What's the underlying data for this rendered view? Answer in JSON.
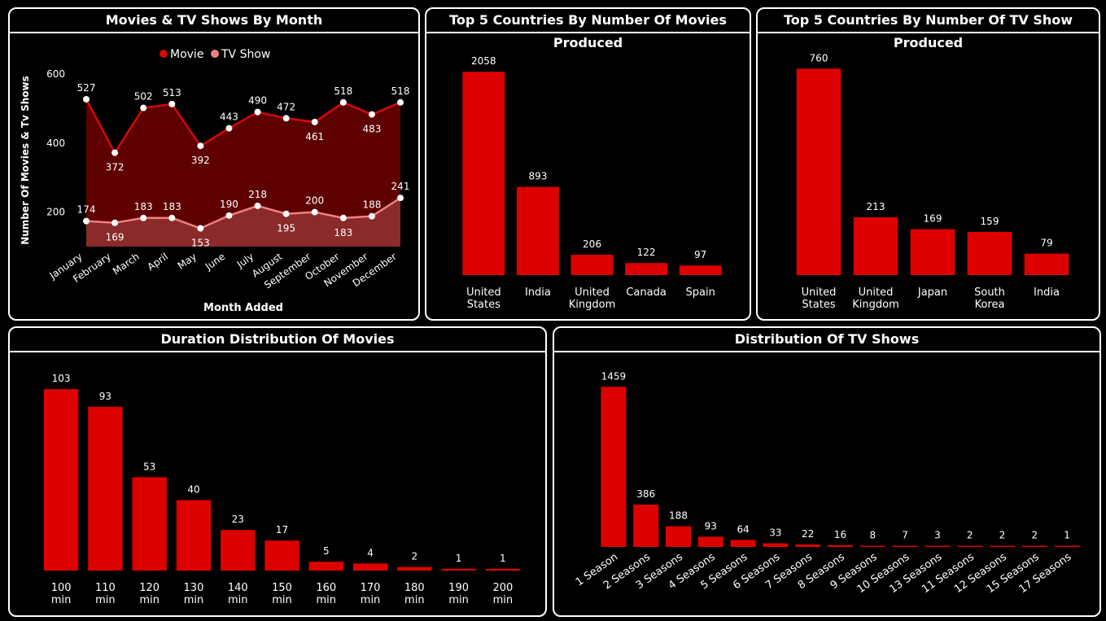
{
  "colors": {
    "movie": "#d10a0a",
    "tv": "#f08080",
    "bar": "#dd0000",
    "movie_area": "#5e0000",
    "tv_area": "#8a2a2a"
  },
  "chart_data": [
    {
      "type": "line",
      "title": "Movies & TV Shows By Month",
      "xlabel": "Month Added",
      "ylabel": "Number Of Movies & Tv Shows",
      "ylim": [
        100,
        600
      ],
      "yticks": [
        200,
        400,
        600
      ],
      "legend_position": "top-center",
      "grid": false,
      "categories": [
        "January",
        "February",
        "March",
        "April",
        "May",
        "June",
        "July",
        "August",
        "September",
        "October",
        "November",
        "December"
      ],
      "series": [
        {
          "name": "Movie",
          "values": [
            527,
            372,
            502,
            513,
            392,
            443,
            490,
            472,
            461,
            518,
            483,
            518
          ]
        },
        {
          "name": "TV Show",
          "values": [
            174,
            169,
            183,
            183,
            153,
            190,
            218,
            195,
            200,
            183,
            188,
            241
          ]
        }
      ]
    },
    {
      "type": "bar",
      "title": "Top 5 Countries By Number Of Movies Produced",
      "categories": [
        [
          "United",
          "States"
        ],
        [
          "India"
        ],
        [
          "United",
          "Kingdom"
        ],
        [
          "Canada"
        ],
        [
          "Spain"
        ]
      ],
      "values": [
        2058,
        893,
        206,
        122,
        97
      ],
      "ylim": [
        0,
        2200
      ]
    },
    {
      "type": "bar",
      "title": "Top 5 Countries By Number Of TV Show Produced",
      "categories": [
        [
          "United",
          "States"
        ],
        [
          "United",
          "Kingdom"
        ],
        [
          "Japan"
        ],
        [
          "South",
          "Korea"
        ],
        [
          "India"
        ]
      ],
      "values": [
        760,
        213,
        169,
        159,
        79
      ],
      "ylim": [
        0,
        800
      ]
    },
    {
      "type": "bar",
      "title": "Duration Distribution Of Movies",
      "categories": [
        [
          "100",
          "min"
        ],
        [
          "110",
          "min"
        ],
        [
          "120",
          "min"
        ],
        [
          "130",
          "min"
        ],
        [
          "140",
          "min"
        ],
        [
          "150",
          "min"
        ],
        [
          "160",
          "min"
        ],
        [
          "170",
          "min"
        ],
        [
          "180",
          "min"
        ],
        [
          "190",
          "min"
        ],
        [
          "200",
          "min"
        ]
      ],
      "values": [
        103,
        93,
        53,
        40,
        23,
        17,
        5,
        4,
        2,
        1,
        1
      ],
      "ylim": [
        0,
        110
      ]
    },
    {
      "type": "bar",
      "title": "Distribution Of TV Shows",
      "categories": [
        "1 Season",
        "2 Seasons",
        "3 Seasons",
        "4 Seasons",
        "5 Seasons",
        "6 Seasons",
        "7 Seasons",
        "8 Seasons",
        "9 Seasons",
        "10 Seasons",
        "13 Seasons",
        "11 Seasons",
        "12 Seasons",
        "15 Seasons",
        "17 Seasons"
      ],
      "values": [
        1459,
        386,
        188,
        93,
        64,
        33,
        22,
        16,
        8,
        7,
        3,
        2,
        2,
        2,
        1
      ],
      "ylim": [
        0,
        1550
      ]
    }
  ]
}
